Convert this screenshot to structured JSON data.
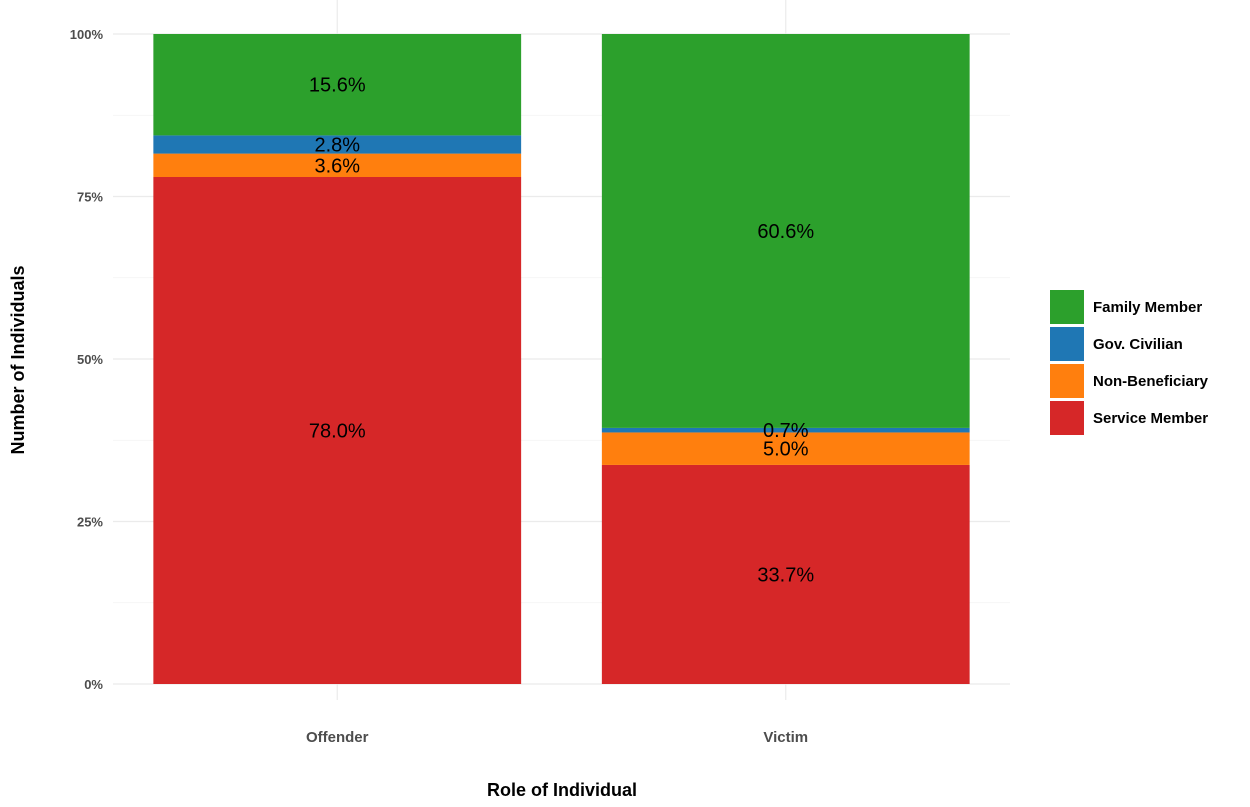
{
  "chart_data": {
    "type": "bar",
    "stacked": true,
    "percent": true,
    "categories": [
      "Offender",
      "Victim"
    ],
    "series": [
      {
        "name": "Service Member",
        "color": "#d62728",
        "values": [
          78.0,
          33.7
        ],
        "labels": [
          "78.0%",
          "33.7%"
        ]
      },
      {
        "name": "Non-Beneficiary",
        "color": "#ff7f0e",
        "values": [
          3.6,
          5.0
        ],
        "labels": [
          "3.6%",
          "5.0%"
        ]
      },
      {
        "name": "Gov. Civilian",
        "color": "#1f77b4",
        "values": [
          2.8,
          0.7
        ],
        "labels": [
          "2.8%",
          "0.7%"
        ]
      },
      {
        "name": "Family Member",
        "color": "#2ca02c",
        "values": [
          15.6,
          60.6
        ],
        "labels": [
          "15.6%",
          "60.6%"
        ]
      }
    ],
    "legend_order": [
      "Family Member",
      "Gov. Civilian",
      "Non-Beneficiary",
      "Service Member"
    ],
    "legend_position": "right",
    "xlabel": "Role of Individual",
    "ylabel": "Number of Individuals",
    "ylim": [
      0,
      100
    ],
    "yticks": [
      {
        "value": 0,
        "label": "0%"
      },
      {
        "value": 25,
        "label": "25%"
      },
      {
        "value": 50,
        "label": "50%"
      },
      {
        "value": 75,
        "label": "75%"
      },
      {
        "value": 100,
        "label": "100%"
      }
    ],
    "grid": true
  }
}
